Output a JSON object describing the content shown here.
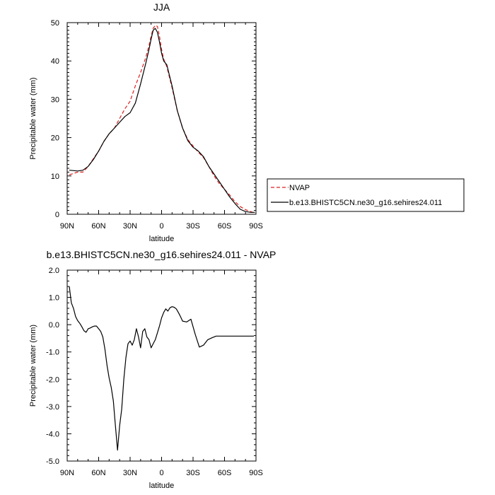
{
  "chart_data": [
    {
      "type": "line",
      "title": "JJA",
      "xlabel": "latitude",
      "ylabel": "Precipitable water (mm)",
      "x_direction": "north-to-south",
      "xlim": [
        90,
        -90
      ],
      "ylim": [
        0,
        50
      ],
      "x_ticks": [
        {
          "value": 90,
          "label": "90N"
        },
        {
          "value": 60,
          "label": "60N"
        },
        {
          "value": 30,
          "label": "30N"
        },
        {
          "value": 0,
          "label": "0"
        },
        {
          "value": -30,
          "label": "30S"
        },
        {
          "value": -60,
          "label": "60S"
        },
        {
          "value": -90,
          "label": "90S"
        }
      ],
      "y_ticks": [
        {
          "value": 0,
          "label": "0"
        },
        {
          "value": 10,
          "label": "10"
        },
        {
          "value": 20,
          "label": "20"
        },
        {
          "value": 30,
          "label": "30"
        },
        {
          "value": 40,
          "label": "40"
        },
        {
          "value": 50,
          "label": "50"
        }
      ],
      "legend_placement": "right",
      "series": [
        {
          "name": "NVAP",
          "color": "#dd2222",
          "dash": "dashed",
          "x": [
            88,
            80,
            75,
            70,
            65,
            60,
            55,
            50,
            45,
            40,
            35,
            30,
            25,
            20,
            15,
            12,
            10,
            8,
            6,
            4,
            2,
            0,
            -2,
            -5,
            -10,
            -15,
            -20,
            -25,
            -30,
            -35,
            -40,
            -45,
            -50,
            -55,
            -60,
            -65,
            -70,
            -75,
            -80,
            -85,
            -89
          ],
          "y": [
            10.3,
            11.0,
            11.0,
            12.5,
            14.5,
            16.5,
            19.0,
            21.0,
            22.5,
            25.0,
            27.5,
            29.5,
            33.5,
            37.0,
            41.0,
            44.0,
            46.5,
            48.5,
            49.3,
            49.0,
            46.5,
            43.0,
            40.5,
            38.5,
            33.0,
            27.0,
            22.5,
            19.5,
            17.8,
            16.2,
            14.8,
            12.5,
            10.0,
            8.0,
            6.5,
            5.0,
            3.3,
            2.0,
            1.2,
            0.7,
            0.3
          ]
        },
        {
          "name": "b.e13.BHISTC5CN.ne30_g16.sehires24.011",
          "color": "#000000",
          "dash": "solid",
          "x": [
            88,
            80,
            75,
            70,
            65,
            60,
            55,
            50,
            45,
            40,
            35,
            30,
            25,
            20,
            15,
            12,
            10,
            8,
            6,
            4,
            2,
            0,
            -2,
            -5,
            -10,
            -15,
            -20,
            -25,
            -30,
            -35,
            -40,
            -45,
            -50,
            -55,
            -60,
            -65,
            -70,
            -75,
            -80,
            -85,
            -89
          ],
          "y": [
            11.5,
            11.3,
            11.5,
            12.5,
            14.3,
            16.5,
            19.0,
            21.0,
            22.5,
            24.0,
            25.5,
            26.5,
            29.0,
            34.0,
            39.5,
            43.0,
            45.7,
            48.0,
            48.5,
            47.5,
            45.0,
            42.0,
            40.0,
            39.0,
            33.5,
            27.0,
            22.5,
            19.2,
            17.5,
            16.5,
            15.0,
            12.5,
            10.5,
            8.5,
            6.5,
            4.5,
            2.8,
            1.3,
            0.7,
            0.5,
            0.5
          ]
        }
      ]
    },
    {
      "type": "line",
      "title": "b.e13.BHISTC5CN.ne30_g16.sehires24.011 - NVAP",
      "xlabel": "latitude",
      "ylabel": "Precipitable water (mm)",
      "x_direction": "north-to-south",
      "xlim": [
        90,
        -90
      ],
      "ylim": [
        -5.0,
        2.0
      ],
      "x_ticks": [
        {
          "value": 90,
          "label": "90N"
        },
        {
          "value": 60,
          "label": "60N"
        },
        {
          "value": 30,
          "label": "30N"
        },
        {
          "value": 0,
          "label": "0"
        },
        {
          "value": -30,
          "label": "30S"
        },
        {
          "value": -60,
          "label": "60S"
        },
        {
          "value": -90,
          "label": "90S"
        }
      ],
      "y_ticks": [
        {
          "value": 2.0,
          "label": "2.0"
        },
        {
          "value": 1.0,
          "label": "1.0"
        },
        {
          "value": 0.0,
          "label": "0.0"
        },
        {
          "value": -1.0,
          "label": "-1.0"
        },
        {
          "value": -2.0,
          "label": "-2.0"
        },
        {
          "value": -3.0,
          "label": "-3.0"
        },
        {
          "value": -4.0,
          "label": "-4.0"
        },
        {
          "value": -5.0,
          "label": "-5.0"
        }
      ],
      "series": [
        {
          "color": "#000000",
          "dash": "solid",
          "x": [
            88,
            86,
            84,
            82,
            80,
            78,
            76,
            74,
            72,
            70,
            68,
            66,
            64,
            62,
            60,
            58,
            56,
            54,
            52,
            50,
            48,
            46,
            44,
            42,
            40,
            38,
            36,
            34,
            32,
            30,
            28,
            26,
            24,
            22,
            20,
            18,
            16,
            14,
            12,
            10,
            8,
            6,
            4,
            2,
            0,
            -2,
            -4,
            -6,
            -8,
            -10,
            -12,
            -14,
            -16,
            -18,
            -20,
            -24,
            -28,
            -32,
            -36,
            -40,
            -44,
            -48,
            -52,
            -56,
            -60,
            -62,
            -64,
            -66,
            -68,
            -70,
            -72,
            -76,
            -80,
            -84,
            -88
          ],
          "y": [
            1.4,
            0.8,
            0.6,
            0.3,
            0.15,
            0.05,
            -0.08,
            -0.22,
            -0.28,
            -0.15,
            -0.12,
            -0.08,
            -0.05,
            -0.05,
            -0.15,
            -0.25,
            -0.45,
            -0.9,
            -1.5,
            -1.95,
            -2.3,
            -2.8,
            -3.7,
            -4.6,
            -3.7,
            -3.1,
            -2.0,
            -1.2,
            -0.7,
            -0.6,
            -0.75,
            -0.55,
            -0.15,
            -0.45,
            -0.85,
            -0.25,
            -0.15,
            -0.45,
            -0.55,
            -0.85,
            -0.7,
            -0.55,
            -0.3,
            -0.05,
            0.25,
            0.45,
            0.58,
            0.5,
            0.62,
            0.66,
            0.64,
            0.58,
            0.45,
            0.3,
            0.13,
            0.1,
            0.2,
            -0.35,
            -0.82,
            -0.75,
            -0.55,
            -0.48,
            -0.42,
            -0.42,
            -0.42,
            -0.42,
            -0.42,
            -0.42,
            -0.42,
            -0.42,
            -0.42,
            -0.42,
            -0.42,
            -0.42,
            -0.42
          ]
        }
      ]
    }
  ],
  "legend": {
    "items": [
      {
        "label": "NVAP",
        "color": "#dd2222",
        "dash": "dashed"
      },
      {
        "label": "b.e13.BHISTC5CN.ne30_g16.sehires24.011",
        "color": "#000000",
        "dash": "solid"
      }
    ]
  }
}
